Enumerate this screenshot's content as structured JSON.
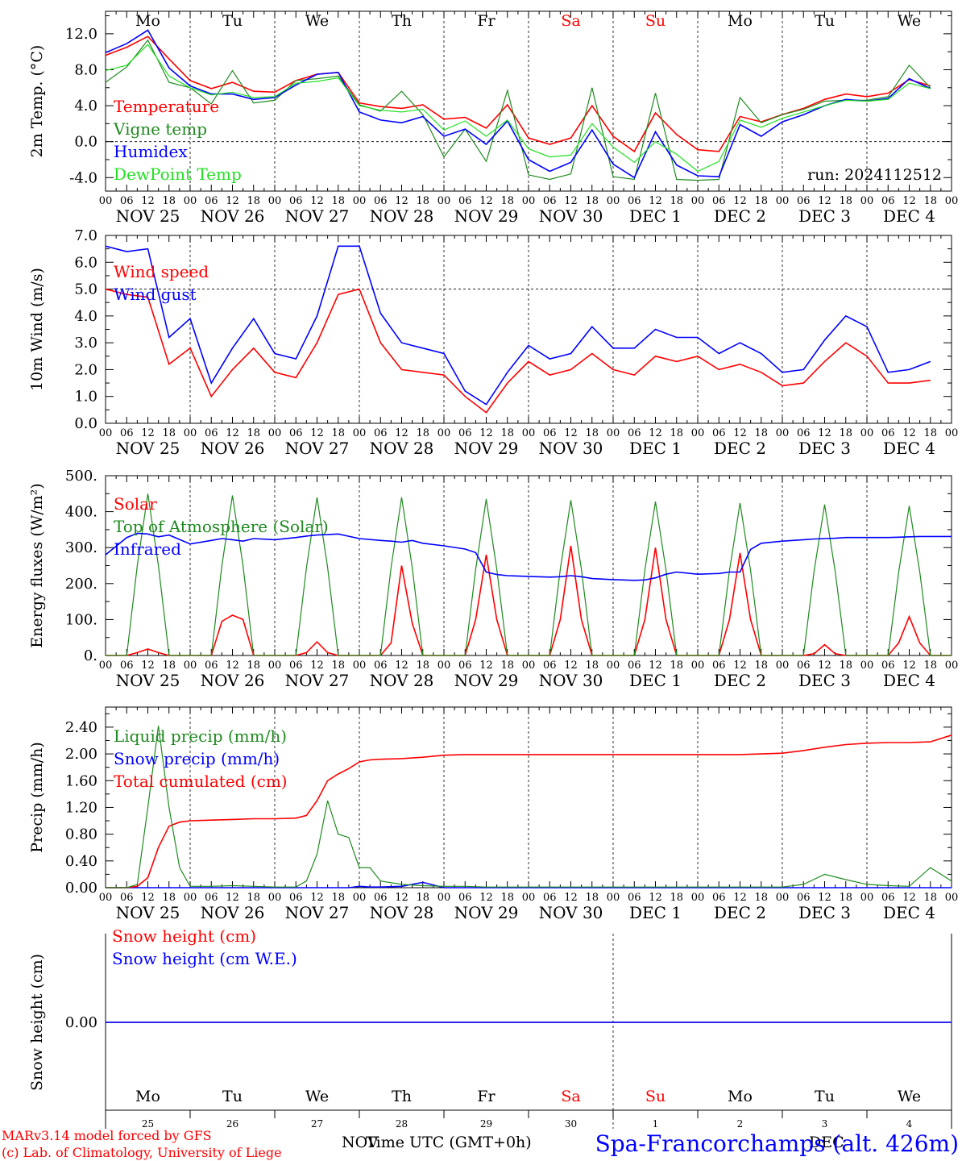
{
  "colors": {
    "red": "#ff0000",
    "darkgreen": "#1f8a1f",
    "blue": "#0000ff",
    "lightgreen": "#22e022",
    "black": "#000000",
    "purple": "#7a3a8a"
  },
  "day_names": [
    "Mo",
    "Tu",
    "We",
    "Th",
    "Fr",
    "Sa",
    "Su",
    "Mo",
    "Tu",
    "We"
  ],
  "day_name_colors": [
    "black",
    "black",
    "black",
    "black",
    "black",
    "red",
    "red",
    "black",
    "black",
    "black"
  ],
  "date_labels": [
    "NOV 25",
    "NOV 26",
    "NOV 27",
    "NOV 28",
    "NOV 29",
    "NOV 30",
    "DEC  1",
    "DEC  2",
    "DEC  3",
    "DEC  4"
  ],
  "hour_labels": [
    "00",
    "06",
    "12",
    "18"
  ],
  "hour_final": "00",
  "bottom_day_numbers": [
    "25",
    "26",
    "27",
    "28",
    "29",
    "30",
    "1",
    "2",
    "3",
    "4"
  ],
  "footer": {
    "model": "MARv3.14 model forced by GFS",
    "credit": "(c) Lab. of Climatology, University of Liege",
    "month_left": "NOV",
    "xlabel": "Time UTC (GMT+0h)",
    "month_right": "DEC",
    "station": "Spa-Francorchamps (alt. 426m)"
  },
  "chart_data": [
    {
      "type": "line",
      "ylabel": "2m Temp. (°C)",
      "ylim": [
        -5.5,
        14.5
      ],
      "yticks": [
        "12.0",
        "8.0",
        "4.0",
        "0.0",
        "-4.0"
      ],
      "ytick_values": [
        12,
        8,
        4,
        0,
        -4
      ],
      "dashed_y": [
        0
      ],
      "annotation": "run: 2024112512",
      "x_hours": [
        0,
        6,
        12,
        18,
        24,
        30,
        36,
        42,
        48,
        54,
        60,
        66,
        72,
        78,
        84,
        90,
        96,
        102,
        108,
        114,
        120,
        126,
        132,
        138,
        144,
        150,
        156,
        162,
        168,
        174,
        180,
        186,
        192,
        198,
        204,
        210,
        216,
        222,
        228,
        234
      ],
      "series": [
        {
          "name": "Temperature",
          "color": "red",
          "values": [
            9.6,
            10.5,
            11.7,
            9.2,
            6.8,
            5.9,
            6.6,
            5.6,
            5.5,
            6.8,
            7.5,
            7.7,
            4.3,
            3.9,
            3.7,
            4.1,
            2.5,
            2.7,
            1.5,
            4.1,
            0.4,
            -0.3,
            0.4,
            4.0,
            0.6,
            -1.1,
            3.2,
            0.8,
            -0.9,
            -1.1,
            2.8,
            2.2,
            3.0,
            3.7,
            4.7,
            5.3,
            5.0,
            5.4,
            6.9,
            6.2
          ]
        },
        {
          "name": "Vigne temp",
          "color": "darkgreen",
          "values": [
            6.6,
            8.3,
            11.3,
            6.6,
            6.0,
            4.2,
            7.9,
            4.3,
            4.6,
            6.8,
            7.0,
            7.3,
            4.1,
            3.4,
            5.6,
            3.0,
            -1.7,
            1.4,
            -2.2,
            5.7,
            -3.7,
            -4.2,
            -3.6,
            6.0,
            -3.9,
            -4.2,
            5.4,
            -4.2,
            -4.3,
            -4.2,
            4.9,
            2.1,
            3.0,
            3.6,
            4.5,
            4.6,
            4.6,
            5.0,
            8.5,
            6.0
          ]
        },
        {
          "name": "Humidex",
          "color": "blue",
          "values": [
            9.9,
            10.9,
            12.4,
            8.2,
            6.2,
            5.3,
            5.3,
            4.7,
            4.9,
            6.3,
            7.5,
            7.7,
            3.3,
            2.4,
            2.1,
            2.8,
            0.6,
            1.4,
            -0.3,
            2.3,
            -2.0,
            -3.3,
            -2.3,
            1.3,
            -2.5,
            -4.0,
            1.1,
            -2.6,
            -3.8,
            -3.9,
            1.9,
            0.6,
            2.2,
            3.0,
            4.0,
            4.7,
            4.5,
            4.8,
            7.0,
            5.9
          ]
        },
        {
          "name": "DewPoint Temp",
          "color": "lightgreen",
          "values": [
            7.9,
            8.5,
            10.8,
            7.3,
            6.0,
            5.2,
            5.5,
            4.9,
            5.0,
            6.5,
            6.7,
            7.1,
            4.0,
            3.5,
            3.3,
            3.6,
            1.3,
            2.3,
            0.6,
            2.4,
            -0.8,
            -1.7,
            -1.5,
            2.0,
            -0.6,
            -2.3,
            0.0,
            -1.4,
            -3.3,
            -2.2,
            2.4,
            1.6,
            2.6,
            3.3,
            4.0,
            4.6,
            4.5,
            4.7,
            6.5,
            5.9
          ]
        }
      ]
    },
    {
      "type": "line",
      "ylabel": "10m Wind (m/s)",
      "ylim": [
        0,
        7
      ],
      "yticks": [
        "7.0",
        "6.0",
        "5.0",
        "4.0",
        "3.0",
        "2.0",
        "1.0",
        "0.0"
      ],
      "ytick_values": [
        7,
        6,
        5,
        4,
        3,
        2,
        1,
        0
      ],
      "dashed_y": [
        5
      ],
      "x_hours": [
        0,
        6,
        12,
        18,
        24,
        30,
        36,
        42,
        48,
        54,
        60,
        66,
        72,
        78,
        84,
        90,
        96,
        102,
        108,
        114,
        120,
        126,
        132,
        138,
        144,
        150,
        156,
        162,
        168,
        174,
        180,
        186,
        192,
        198,
        204,
        210,
        216,
        222,
        228,
        234
      ],
      "series": [
        {
          "name": "Wind speed",
          "color": "red",
          "values": [
            5.0,
            4.8,
            4.7,
            2.2,
            2.8,
            1.0,
            2.0,
            2.8,
            1.9,
            1.7,
            3.0,
            4.8,
            5.0,
            3.0,
            2.0,
            1.9,
            1.8,
            1.0,
            0.4,
            1.5,
            2.3,
            1.8,
            2.0,
            2.6,
            2.0,
            1.8,
            2.5,
            2.3,
            2.5,
            2.0,
            2.2,
            1.9,
            1.4,
            1.5,
            2.3,
            3.0,
            2.5,
            1.5,
            1.5,
            1.6
          ]
        },
        {
          "name": "Wind gust",
          "color": "blue",
          "values": [
            6.6,
            6.4,
            6.5,
            3.2,
            3.9,
            1.5,
            2.8,
            3.9,
            2.6,
            2.4,
            4.0,
            6.6,
            6.6,
            4.1,
            3.0,
            2.8,
            2.6,
            1.2,
            0.7,
            1.9,
            2.9,
            2.4,
            2.6,
            3.6,
            2.8,
            2.8,
            3.5,
            3.2,
            3.2,
            2.6,
            3.0,
            2.6,
            1.9,
            2.0,
            3.1,
            4.0,
            3.6,
            1.9,
            2.0,
            2.3
          ]
        }
      ]
    },
    {
      "type": "line",
      "ylabel": "Energy fluxes (W/m²)",
      "ylim": [
        0,
        500
      ],
      "yticks": [
        "500.",
        "400.",
        "300.",
        "200.",
        "100.",
        "0."
      ],
      "ytick_values": [
        500,
        400,
        300,
        200,
        100,
        0
      ],
      "dashed_y": [],
      "x_hours": [
        0,
        6,
        9,
        12,
        15,
        18,
        24,
        30,
        33,
        36,
        39,
        42,
        48,
        54,
        57,
        60,
        63,
        66,
        72,
        78,
        81,
        84,
        87,
        90,
        96,
        102,
        105,
        108,
        111,
        114,
        120,
        126,
        129,
        132,
        135,
        138,
        144,
        150,
        153,
        156,
        159,
        162,
        168,
        174,
        177,
        180,
        183,
        186,
        192,
        198,
        201,
        204,
        207,
        210,
        216,
        222,
        225,
        228,
        231,
        234,
        240
      ],
      "series": [
        {
          "name": "Solar",
          "color": "red",
          "values": [
            0,
            0,
            8,
            18,
            8,
            0,
            0,
            0,
            95,
            112,
            100,
            0,
            0,
            0,
            8,
            38,
            8,
            0,
            0,
            0,
            35,
            250,
            90,
            0,
            0,
            0,
            100,
            280,
            100,
            0,
            0,
            0,
            100,
            305,
            100,
            0,
            0,
            0,
            100,
            300,
            100,
            0,
            0,
            0,
            100,
            285,
            100,
            0,
            0,
            0,
            5,
            30,
            5,
            0,
            0,
            0,
            35,
            108,
            35,
            0,
            0
          ]
        },
        {
          "name": "Top of Atmosphere (Solar)",
          "color": "darkgreen",
          "values": [
            0,
            0,
            250,
            450,
            250,
            0,
            0,
            0,
            250,
            445,
            250,
            0,
            0,
            0,
            245,
            440,
            245,
            0,
            0,
            0,
            245,
            440,
            245,
            0,
            0,
            0,
            240,
            435,
            240,
            0,
            0,
            0,
            240,
            432,
            240,
            0,
            0,
            0,
            238,
            428,
            238,
            0,
            0,
            0,
            236,
            424,
            236,
            0,
            0,
            0,
            234,
            420,
            234,
            0,
            0,
            0,
            232,
            416,
            232,
            0,
            0
          ]
        },
        {
          "name": "Infrared",
          "color": "blue",
          "values": [
            280,
            328,
            340,
            338,
            330,
            335,
            310,
            320,
            325,
            322,
            318,
            325,
            322,
            328,
            332,
            335,
            336,
            338,
            325,
            320,
            318,
            315,
            320,
            312,
            305,
            296,
            286,
            232,
            225,
            222,
            220,
            218,
            219,
            222,
            219,
            214,
            211,
            209,
            210,
            216,
            226,
            232,
            226,
            228,
            232,
            232,
            295,
            312,
            318,
            322,
            324,
            325,
            326,
            328,
            328,
            328,
            329,
            330,
            331,
            331,
            331
          ]
        }
      ]
    },
    {
      "type": "line",
      "ylabel": "Precip (mm/h)",
      "ylim": [
        0,
        2.7
      ],
      "yticks": [
        "2.40",
        "2.00",
        "1.60",
        "1.20",
        "0.80",
        "0.40",
        "0.00"
      ],
      "ytick_values": [
        2.4,
        2.0,
        1.6,
        1.2,
        0.8,
        0.4,
        0.0
      ],
      "dashed_y": [],
      "x_hours": [
        0,
        6,
        9,
        12,
        15,
        18,
        21,
        24,
        30,
        36,
        42,
        48,
        54,
        57,
        60,
        63,
        66,
        69,
        72,
        75,
        78,
        84,
        90,
        96,
        102,
        108,
        114,
        120,
        126,
        132,
        138,
        144,
        150,
        156,
        162,
        168,
        174,
        180,
        186,
        192,
        198,
        204,
        210,
        216,
        222,
        228,
        234,
        240
      ],
      "series": [
        {
          "name": "Liquid precip (mm/h)",
          "color": "darkgreen",
          "values": [
            0,
            0,
            0.05,
            1.2,
            2.42,
            1.2,
            0.3,
            0.02,
            0.02,
            0.03,
            0.02,
            0.01,
            0.01,
            0.1,
            0.5,
            1.3,
            0.8,
            0.75,
            0.3,
            0.3,
            0.1,
            0.05,
            0.03,
            0.02,
            0.02,
            0.01,
            0.01,
            0.01,
            0.01,
            0.01,
            0.01,
            0.01,
            0.01,
            0.01,
            0.01,
            0.01,
            0.01,
            0.01,
            0.01,
            0.01,
            0.05,
            0.2,
            0.12,
            0.05,
            0.03,
            0.02,
            0.3,
            0.1
          ]
        },
        {
          "name": "Snow precip (mm/h)",
          "color": "blue",
          "values": [
            0,
            0,
            0,
            0,
            0,
            0,
            0,
            0,
            0,
            0,
            0,
            0,
            0,
            0,
            0,
            0,
            0,
            0,
            0.02,
            0.01,
            0.01,
            0.02,
            0.08,
            0,
            0,
            0,
            0,
            0,
            0,
            0,
            0,
            0,
            0,
            0,
            0,
            0,
            0,
            0,
            0,
            0,
            0,
            0,
            0,
            0,
            0,
            0,
            0,
            0
          ]
        },
        {
          "name": "Total cumulated (cm)",
          "color": "red",
          "values": [
            0,
            0,
            0.02,
            0.15,
            0.6,
            0.92,
            0.98,
            1.0,
            1.01,
            1.02,
            1.03,
            1.03,
            1.04,
            1.08,
            1.3,
            1.6,
            1.7,
            1.78,
            1.88,
            1.91,
            1.92,
            1.93,
            1.95,
            1.98,
            1.99,
            1.99,
            1.99,
            1.99,
            1.99,
            1.99,
            1.99,
            1.99,
            1.99,
            1.99,
            1.99,
            1.99,
            1.99,
            1.99,
            2.0,
            2.01,
            2.05,
            2.1,
            2.14,
            2.16,
            2.17,
            2.17,
            2.18,
            2.28
          ]
        }
      ]
    },
    {
      "type": "line",
      "ylabel": "Snow height (cm)",
      "ylim": [
        -1,
        1
      ],
      "yticks": [
        "0.00"
      ],
      "ytick_values": [
        0
      ],
      "dashed_y": [],
      "x_hours": [
        0,
        240
      ],
      "series": [
        {
          "name": "Snow height (cm)",
          "color": "red",
          "values": [
            0,
            0
          ]
        },
        {
          "name": "Snow height (cm W.E.)",
          "color": "blue",
          "values": [
            0,
            0
          ]
        }
      ]
    }
  ]
}
